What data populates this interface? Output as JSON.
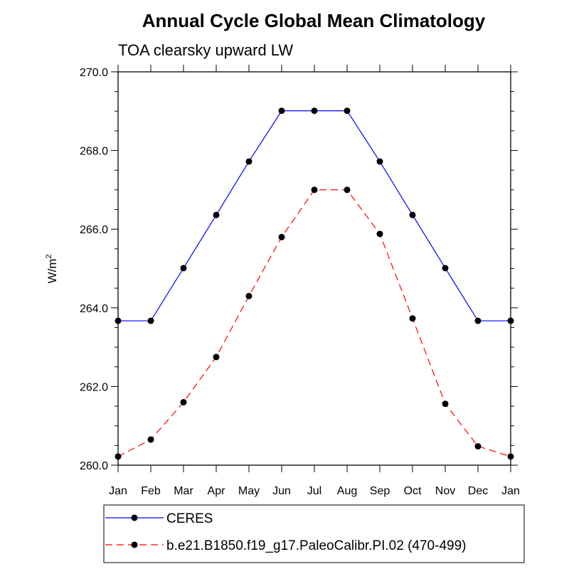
{
  "chart_data": {
    "type": "line",
    "title": "Annual Cycle Global Mean Climatology",
    "subtitle": "TOA clearsky upward LW",
    "ylabel": "W/m",
    "ylabel_sup": "2",
    "ylim": [
      260.0,
      270.0
    ],
    "yticks": [
      "260.0",
      "262.0",
      "264.0",
      "266.0",
      "268.0",
      "270.0"
    ],
    "categories": [
      "Jan",
      "Feb",
      "Mar",
      "Apr",
      "May",
      "Jun",
      "Jul",
      "Aug",
      "Sep",
      "Oct",
      "Nov",
      "Dec",
      "Jan"
    ],
    "series": [
      {
        "name": "CERES",
        "color": "#0000ff",
        "dash": "solid",
        "values": [
          263.67,
          263.67,
          265.01,
          266.36,
          267.72,
          269.01,
          269.01,
          269.01,
          267.72,
          266.36,
          265.01,
          263.67,
          263.67
        ]
      },
      {
        "name": "b.e21.B1850.f19_g17.PaleoCalibr.PI.02 (470-499)",
        "color": "#ff0000",
        "dash": "dashed",
        "values": [
          260.22,
          260.65,
          261.6,
          262.75,
          264.3,
          265.8,
          267.0,
          267.0,
          265.88,
          263.73,
          261.56,
          260.48,
          260.22
        ]
      }
    ]
  }
}
